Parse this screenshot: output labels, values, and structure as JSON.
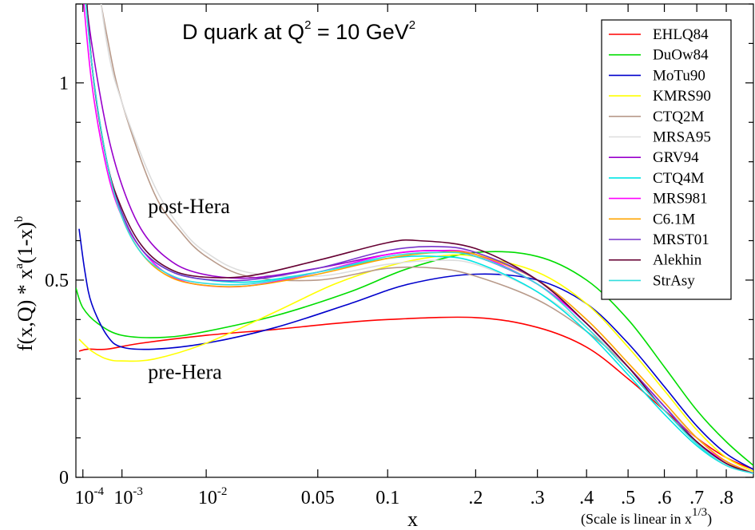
{
  "chart_data": {
    "type": "line",
    "title": "D quark at Q² = 10 GeV²",
    "title_parts": {
      "main": "D quark at Q",
      "exp1": "2",
      "mid": " = 10 GeV",
      "exp2": "2"
    },
    "xlabel": "x",
    "ylabel": "f(x,Q) * x^a(1-x)^b",
    "ylabel_parts": {
      "p1": "f(x,Q)",
      "p2": " * x",
      "sup1": "a",
      "p3": "(1-x)",
      "sup2": "b"
    },
    "x_scale": "cube-root (linear in x^(1/3))",
    "xlim": [
      5e-05,
      0.9
    ],
    "ylim": [
      0,
      1.2
    ],
    "x_ticks": [
      {
        "value": 0.0001,
        "base": "10",
        "exp": "-4"
      },
      {
        "value": 0.001,
        "base": "10",
        "exp": "-3"
      },
      {
        "value": 0.01,
        "base": "10",
        "exp": "-2"
      },
      {
        "value": 0.05,
        "label": "0.05"
      },
      {
        "value": 0.1,
        "label": "0.1"
      },
      {
        "value": 0.2,
        "label": ".2"
      },
      {
        "value": 0.3,
        "label": ".3"
      },
      {
        "value": 0.4,
        "label": ".4"
      },
      {
        "value": 0.5,
        "label": ".5"
      },
      {
        "value": 0.6,
        "label": ".6"
      },
      {
        "value": 0.7,
        "label": ".7"
      },
      {
        "value": 0.8,
        "label": ".8"
      }
    ],
    "y_ticks": [
      {
        "value": 0,
        "label": "0"
      },
      {
        "value": 0.5,
        "label": "0.5"
      },
      {
        "value": 1,
        "label": "1"
      }
    ],
    "note": {
      "text": "(Scale is linear in x",
      "sup": "1/3",
      "close": ")"
    },
    "annotations": [
      {
        "text": "post-Hera",
        "x": 0.0025,
        "y": 0.67
      },
      {
        "text": "pre-Hera",
        "x": 0.0025,
        "y": 0.25
      }
    ],
    "legend_position": "top-right",
    "series": [
      {
        "name": "EHLQ84",
        "color": "#ff0000",
        "x": [
          7e-05,
          0.00015,
          0.0005,
          0.002,
          0.01,
          0.03,
          0.06,
          0.1,
          0.2,
          0.3,
          0.4,
          0.5,
          0.6,
          0.7,
          0.8,
          0.9
        ],
        "y": [
          0.32,
          0.325,
          0.325,
          0.34,
          0.36,
          0.375,
          0.39,
          0.4,
          0.405,
          0.38,
          0.33,
          0.25,
          0.17,
          0.1,
          0.05,
          0.02
        ]
      },
      {
        "name": "DuOw84",
        "color": "#00dd00",
        "x": [
          5e-05,
          0.0001,
          0.0003,
          0.001,
          0.004,
          0.01,
          0.03,
          0.07,
          0.12,
          0.2,
          0.3,
          0.4,
          0.5,
          0.6,
          0.7,
          0.8,
          0.9
        ],
        "y": [
          0.48,
          0.43,
          0.39,
          0.36,
          0.355,
          0.37,
          0.41,
          0.47,
          0.53,
          0.57,
          0.56,
          0.5,
          0.4,
          0.28,
          0.17,
          0.09,
          0.03
        ]
      },
      {
        "name": "MoTu90",
        "color": "#0000cc",
        "x": [
          7e-05,
          0.00012,
          0.0002,
          0.0005,
          0.001,
          0.003,
          0.01,
          0.03,
          0.07,
          0.12,
          0.2,
          0.3,
          0.4,
          0.5,
          0.6,
          0.7,
          0.8,
          0.9
        ],
        "y": [
          0.63,
          0.52,
          0.44,
          0.36,
          0.33,
          0.325,
          0.34,
          0.38,
          0.44,
          0.49,
          0.515,
          0.5,
          0.44,
          0.34,
          0.23,
          0.13,
          0.06,
          0.02
        ]
      },
      {
        "name": "KMRS90",
        "color": "#ffff00",
        "x": [
          7e-05,
          0.0002,
          0.0005,
          0.001,
          0.003,
          0.01,
          0.03,
          0.06,
          0.1,
          0.15,
          0.2,
          0.3,
          0.4,
          0.5,
          0.6,
          0.7,
          0.8,
          0.9
        ],
        "y": [
          0.35,
          0.32,
          0.3,
          0.295,
          0.3,
          0.34,
          0.42,
          0.49,
          0.535,
          0.56,
          0.56,
          0.52,
          0.44,
          0.33,
          0.22,
          0.12,
          0.05,
          0.015
        ]
      },
      {
        "name": "CTQ2M",
        "color": "#b89a8a",
        "x": [
          8e-05,
          0.0002,
          0.0005,
          0.001,
          0.003,
          0.006,
          0.01,
          0.02,
          0.05,
          0.1,
          0.15,
          0.2,
          0.3,
          0.4,
          0.5,
          0.6,
          0.7,
          0.8,
          0.9
        ],
        "y": [
          1.6,
          1.35,
          1.12,
          0.95,
          0.72,
          0.62,
          0.56,
          0.51,
          0.5,
          0.53,
          0.53,
          0.51,
          0.45,
          0.37,
          0.28,
          0.18,
          0.1,
          0.04,
          0.01
        ]
      },
      {
        "name": "MRSA95",
        "color": "#dddddd",
        "x": [
          8e-05,
          0.0002,
          0.0005,
          0.001,
          0.003,
          0.006,
          0.01,
          0.02,
          0.05,
          0.1,
          0.15,
          0.2,
          0.3,
          0.4,
          0.5,
          0.6,
          0.7,
          0.8,
          0.9
        ],
        "y": [
          1.7,
          1.4,
          1.1,
          0.95,
          0.74,
          0.63,
          0.57,
          0.52,
          0.51,
          0.54,
          0.55,
          0.54,
          0.47,
          0.38,
          0.28,
          0.18,
          0.1,
          0.04,
          0.01
        ]
      },
      {
        "name": "GRV94",
        "color": "#9900cc",
        "x": [
          9e-05,
          0.0002,
          0.0005,
          0.001,
          0.002,
          0.004,
          0.008,
          0.02,
          0.05,
          0.1,
          0.15,
          0.2,
          0.3,
          0.4,
          0.5,
          0.6,
          0.7,
          0.8,
          0.9
        ],
        "y": [
          1.3,
          1.1,
          0.88,
          0.74,
          0.63,
          0.56,
          0.52,
          0.505,
          0.53,
          0.565,
          0.575,
          0.56,
          0.49,
          0.39,
          0.28,
          0.18,
          0.09,
          0.04,
          0.01
        ]
      },
      {
        "name": "CTQ4M",
        "color": "#00e5e5",
        "x": [
          7e-05,
          0.0002,
          0.0005,
          0.001,
          0.002,
          0.004,
          0.008,
          0.02,
          0.05,
          0.1,
          0.15,
          0.2,
          0.3,
          0.4,
          0.5,
          0.6,
          0.7,
          0.8,
          0.9
        ],
        "y": [
          1.4,
          1.05,
          0.8,
          0.67,
          0.58,
          0.53,
          0.505,
          0.495,
          0.52,
          0.555,
          0.56,
          0.545,
          0.47,
          0.37,
          0.26,
          0.16,
          0.08,
          0.03,
          0.01
        ]
      },
      {
        "name": "MRS981",
        "color": "#ff00ff",
        "x": [
          8e-05,
          0.0002,
          0.0005,
          0.001,
          0.002,
          0.004,
          0.008,
          0.02,
          0.05,
          0.1,
          0.15,
          0.2,
          0.3,
          0.4,
          0.5,
          0.6,
          0.7,
          0.8,
          0.9
        ],
        "y": [
          1.3,
          1.0,
          0.78,
          0.66,
          0.58,
          0.52,
          0.49,
          0.485,
          0.52,
          0.565,
          0.575,
          0.565,
          0.49,
          0.39,
          0.28,
          0.18,
          0.09,
          0.04,
          0.01
        ]
      },
      {
        "name": "C6.1M",
        "color": "#ffa500",
        "x": [
          7e-05,
          0.0002,
          0.0005,
          0.001,
          0.002,
          0.004,
          0.008,
          0.02,
          0.05,
          0.1,
          0.15,
          0.2,
          0.3,
          0.4,
          0.5,
          0.6,
          0.7,
          0.8,
          0.9
        ],
        "y": [
          1.45,
          1.05,
          0.8,
          0.66,
          0.57,
          0.515,
          0.49,
          0.485,
          0.515,
          0.555,
          0.57,
          0.565,
          0.5,
          0.4,
          0.29,
          0.19,
          0.1,
          0.04,
          0.01
        ]
      },
      {
        "name": "MRST01",
        "color": "#7733cc",
        "x": [
          8e-05,
          0.0002,
          0.0005,
          0.001,
          0.002,
          0.004,
          0.008,
          0.02,
          0.05,
          0.1,
          0.15,
          0.2,
          0.3,
          0.4,
          0.5,
          0.6,
          0.7,
          0.8,
          0.9
        ],
        "y": [
          1.45,
          1.05,
          0.8,
          0.67,
          0.58,
          0.53,
          0.505,
          0.5,
          0.53,
          0.575,
          0.585,
          0.57,
          0.5,
          0.39,
          0.28,
          0.18,
          0.09,
          0.035,
          0.01
        ]
      },
      {
        "name": "Alekhin",
        "color": "#660033",
        "x": [
          9e-05,
          0.0002,
          0.0005,
          0.001,
          0.002,
          0.004,
          0.008,
          0.02,
          0.05,
          0.1,
          0.13,
          0.2,
          0.3,
          0.4,
          0.5,
          0.6,
          0.7,
          0.8,
          0.9
        ],
        "y": [
          1.4,
          1.05,
          0.8,
          0.68,
          0.59,
          0.535,
          0.51,
          0.51,
          0.55,
          0.595,
          0.6,
          0.58,
          0.5,
          0.39,
          0.28,
          0.17,
          0.09,
          0.035,
          0.01
        ]
      },
      {
        "name": "StrAsy",
        "color": "#33dddd",
        "x": [
          7e-05,
          0.0002,
          0.0005,
          0.001,
          0.002,
          0.004,
          0.008,
          0.02,
          0.05,
          0.1,
          0.15,
          0.2,
          0.3,
          0.4,
          0.5,
          0.6,
          0.7,
          0.8,
          0.9
        ],
        "y": [
          1.4,
          1.05,
          0.8,
          0.66,
          0.57,
          0.52,
          0.495,
          0.49,
          0.52,
          0.56,
          0.57,
          0.56,
          0.49,
          0.38,
          0.27,
          0.17,
          0.085,
          0.03,
          0.01
        ]
      }
    ]
  }
}
